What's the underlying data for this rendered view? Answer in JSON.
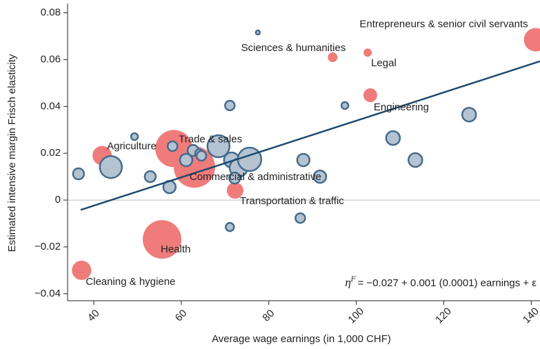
{
  "chart_data": {
    "type": "scatter",
    "x_label": "Average wage earnings (in 1,000 CHF)",
    "y_label": "Estimated intensive margin Frisch elasticity",
    "xlim": [
      34,
      142
    ],
    "ylim": [
      -0.043,
      0.084
    ],
    "xticks": [
      40,
      60,
      80,
      100,
      120,
      140
    ],
    "yticks": [
      {
        "value": -0.04,
        "label": "−0.04"
      },
      {
        "value": -0.02,
        "label": "−0.02"
      },
      0,
      0.02,
      0.04,
      0.06,
      0.08
    ],
    "series": [
      {
        "color": "#f07b7b",
        "x": [
          141,
          94.6,
          102.6,
          103.2,
          41.9,
          58.3,
          63,
          72.3,
          55.6,
          37.2
        ],
        "values": [
          0.0685,
          0.061,
          0.063,
          0.0448,
          0.019,
          0.022,
          0.0141,
          0.0041,
          -0.0168,
          -0.03
        ],
        "sizes": [
          17,
          7,
          6,
          10,
          14,
          27,
          30,
          12,
          28,
          14
        ],
        "labels": [
          "Entrepreneurs & senior civil servants",
          "Sciences & humanities",
          "Legal",
          "Engineering",
          "Agriculture",
          "Trade & sales",
          "Commercial & administrative",
          "Transportation & traffic",
          "Health",
          "Cleaning & hygiene"
        ]
      },
      {
        "color": "#b4c3d2",
        "edge_color": "#456b8c",
        "x": [
          36.5,
          43.9,
          49.3,
          52.9,
          58,
          57.3,
          61.1,
          62.7,
          64.1,
          64.6,
          68.5,
          71.1,
          71.5,
          71.1,
          73.1,
          75.6,
          77.5,
          72.2,
          87.9,
          87.2,
          91.7,
          97.4,
          108.4,
          113.5,
          125.8
        ],
        "values": [
          0.0112,
          0.0141,
          0.0271,
          0.01,
          0.023,
          0.0056,
          0.0171,
          0.0212,
          0.02,
          0.0189,
          0.023,
          0.0404,
          0.0171,
          -0.0115,
          0.0138,
          0.0174,
          0.0716,
          0.0094,
          0.0171,
          -0.0077,
          0.01,
          0.0404,
          0.0265,
          0.0171,
          0.0365
        ],
        "sizes": [
          8,
          16,
          5,
          8,
          7,
          9,
          9,
          8,
          6,
          7,
          16,
          7,
          11,
          6,
          13,
          17,
          3,
          8,
          9,
          7,
          9,
          5,
          10,
          10,
          10
        ]
      }
    ],
    "fit": {
      "color": "#1f4a6e",
      "x": [
        37,
        142
      ],
      "values": [
        -0.0042,
        0.0593
      ]
    },
    "equation": {
      "lhs": "η",
      "sup": "F",
      "rhs": "= −0.027 + 0.001 (0.0001) earnings + ε"
    }
  }
}
